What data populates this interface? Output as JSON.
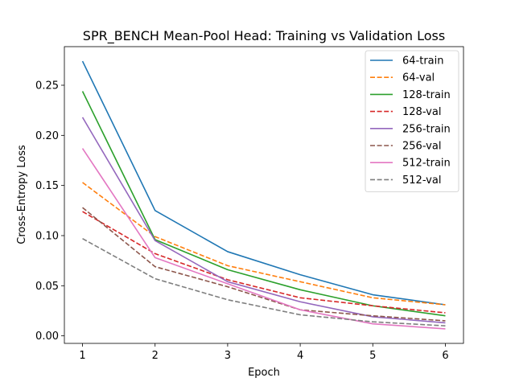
{
  "chart_data": {
    "type": "line",
    "title": "SPR_BENCH Mean-Pool Head: Training vs Validation Loss",
    "xlabel": "Epoch",
    "ylabel": "Cross-Entropy Loss",
    "x": [
      1,
      2,
      3,
      4,
      5,
      6
    ],
    "xlim": [
      0.75,
      6.25
    ],
    "ylim": [
      -0.0075,
      0.2885
    ],
    "xticks": [
      1,
      2,
      3,
      4,
      5,
      6
    ],
    "yticks": [
      0.0,
      0.05,
      0.1,
      0.15,
      0.2,
      0.25
    ],
    "ytick_labels": [
      "0.00",
      "0.05",
      "0.10",
      "0.15",
      "0.20",
      "0.25"
    ],
    "legend_position": "top-right",
    "grid": false,
    "series": [
      {
        "name": "64-train",
        "color": "#1f77b4",
        "dash": "solid",
        "values": [
          0.274,
          0.125,
          0.084,
          0.061,
          0.041,
          0.031
        ]
      },
      {
        "name": "64-val",
        "color": "#ff7f0e",
        "dash": "dashed",
        "values": [
          0.153,
          0.099,
          0.07,
          0.054,
          0.038,
          0.031
        ]
      },
      {
        "name": "128-train",
        "color": "#2ca02c",
        "dash": "solid",
        "values": [
          0.244,
          0.096,
          0.066,
          0.046,
          0.03,
          0.02
        ]
      },
      {
        "name": "128-val",
        "color": "#d62728",
        "dash": "dashed",
        "values": [
          0.124,
          0.082,
          0.056,
          0.038,
          0.03,
          0.023
        ]
      },
      {
        "name": "256-train",
        "color": "#9467bd",
        "dash": "solid",
        "values": [
          0.218,
          0.095,
          0.054,
          0.034,
          0.019,
          0.013
        ]
      },
      {
        "name": "256-val",
        "color": "#8c564b",
        "dash": "dashed",
        "values": [
          0.128,
          0.069,
          0.049,
          0.026,
          0.02,
          0.015
        ]
      },
      {
        "name": "512-train",
        "color": "#e377c2",
        "dash": "solid",
        "values": [
          0.187,
          0.078,
          0.052,
          0.026,
          0.012,
          0.007
        ]
      },
      {
        "name": "512-val",
        "color": "#7f7f7f",
        "dash": "dashed",
        "values": [
          0.097,
          0.057,
          0.036,
          0.021,
          0.014,
          0.01
        ]
      }
    ]
  }
}
